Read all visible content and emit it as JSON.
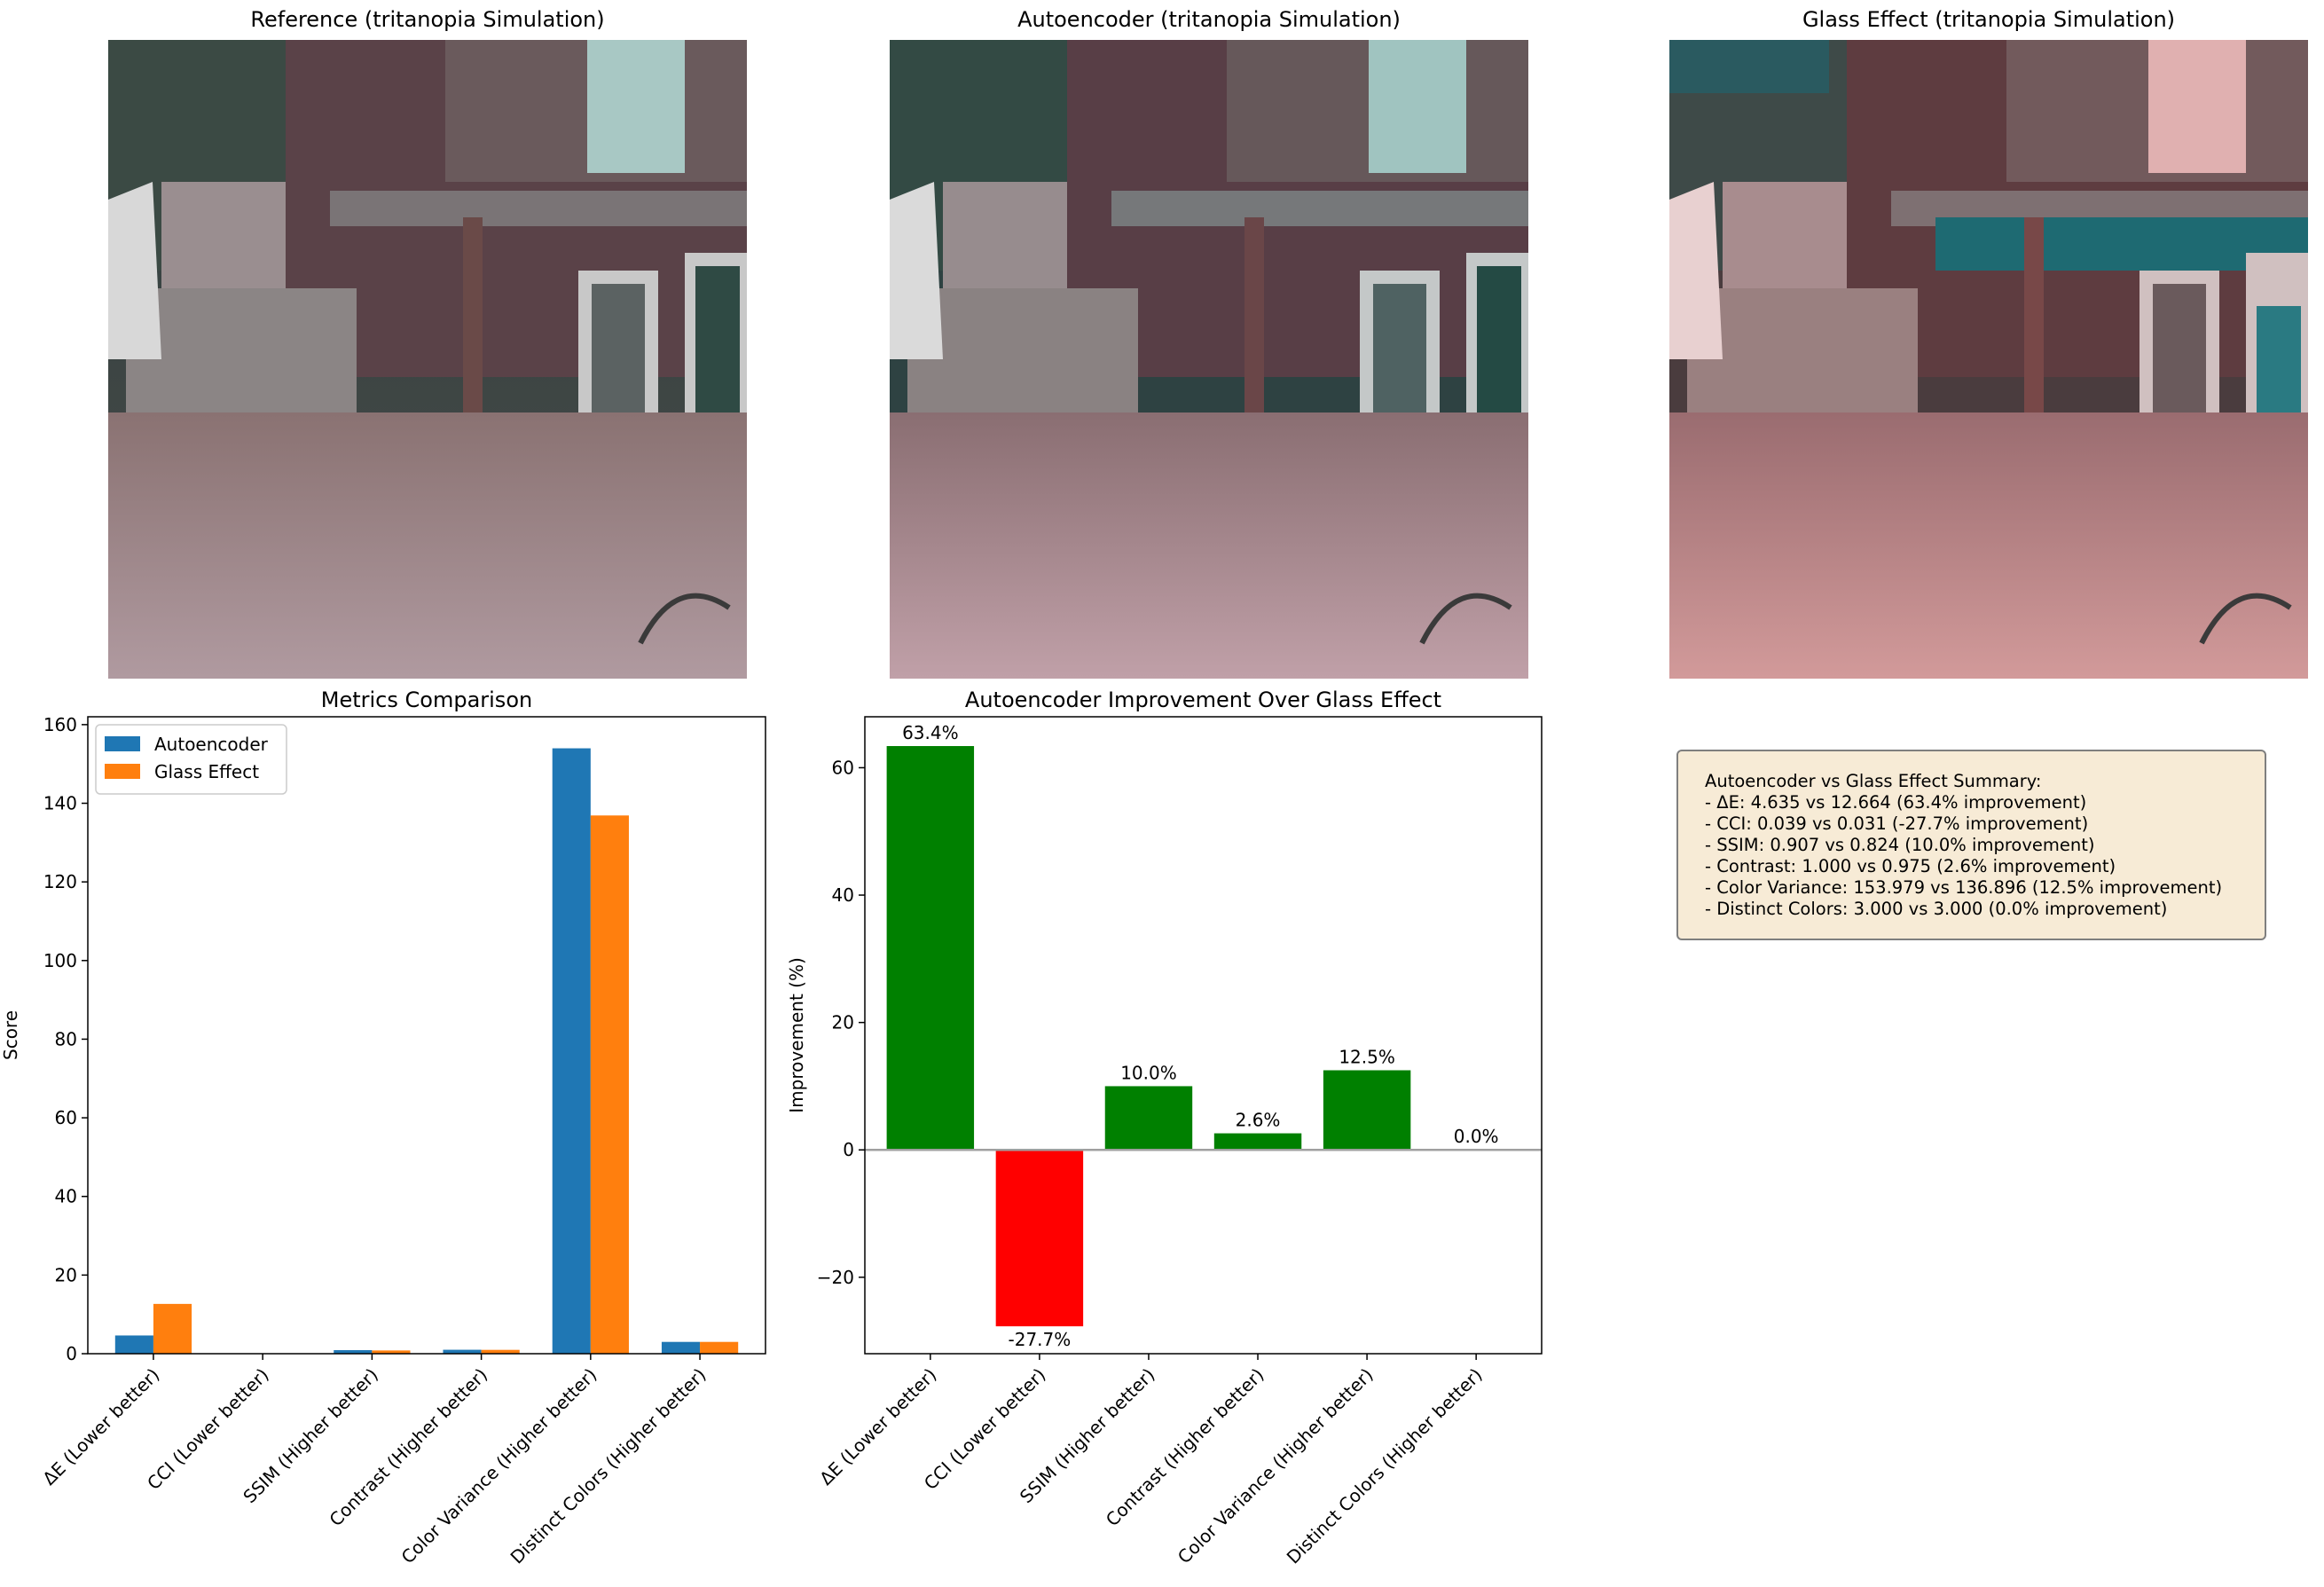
{
  "panels": {
    "reference_title": "Reference (tritanopia Simulation)",
    "autoencoder_title": "Autoencoder (tritanopia Simulation)",
    "glass_title": "Glass Effect (tritanopia Simulation)"
  },
  "colors": {
    "autoencoder": "#1f77b4",
    "glass": "#ff7f0e",
    "positive": "#008000",
    "negative": "#ff0000",
    "summary_bg": "#f7ebd6"
  },
  "chart_data": [
    {
      "type": "bar",
      "title": "Metrics Comparison",
      "xlabel": "",
      "ylabel": "Score",
      "ylim": [
        0,
        162
      ],
      "yticks": [
        0,
        20,
        40,
        60,
        80,
        100,
        120,
        140,
        160
      ],
      "categories": [
        "ΔE (Lower better)",
        "CCI (Lower better)",
        "SSIM (Higher better)",
        "Contrast (Higher better)",
        "Color Variance (Higher better)",
        "Distinct Colors (Higher better)"
      ],
      "series": [
        {
          "name": "Autoencoder",
          "values": [
            4.635,
            0.039,
            0.907,
            1.0,
            153.979,
            3.0
          ]
        },
        {
          "name": "Glass Effect",
          "values": [
            12.664,
            0.031,
            0.824,
            0.975,
            136.896,
            3.0
          ]
        }
      ],
      "legend": "top-left"
    },
    {
      "type": "bar",
      "title": "Autoencoder Improvement Over Glass Effect",
      "xlabel": "",
      "ylabel": "Improvement (%)",
      "ylim": [
        -32,
        68
      ],
      "yticks": [
        -20,
        0,
        20,
        40,
        60
      ],
      "categories": [
        "ΔE (Lower better)",
        "CCI (Lower better)",
        "SSIM (Higher better)",
        "Contrast (Higher better)",
        "Color Variance (Higher better)",
        "Distinct Colors (Higher better)"
      ],
      "values": [
        63.4,
        -27.7,
        10.0,
        2.6,
        12.5,
        0.0
      ],
      "labels": [
        "63.4%",
        "-27.7%",
        "10.0%",
        "2.6%",
        "12.5%",
        "0.0%"
      ]
    }
  ],
  "summary": {
    "title": "Autoencoder vs Glass Effect Summary:",
    "lines": [
      "- ΔE: 4.635 vs 12.664 (63.4% improvement)",
      "- CCI: 0.039 vs 0.031 (-27.7% improvement)",
      "- SSIM: 0.907 vs 0.824 (10.0% improvement)",
      "- Contrast: 1.000 vs 0.975 (2.6% improvement)",
      "- Color Variance: 153.979 vs 136.896 (12.5% improvement)",
      "- Distinct Colors: 3.000 vs 3.000 (0.0% improvement)"
    ]
  }
}
